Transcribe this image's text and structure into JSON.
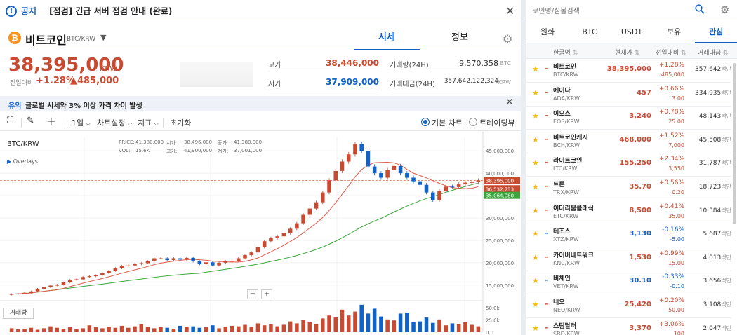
{
  "notice": {
    "tag": "공지",
    "title": "[점검] 긴급 서버 점검 안내 (완료)"
  },
  "coin": {
    "name": "비트코인",
    "pair": "BTC/KRW",
    "logo": "₿"
  },
  "tabs": [
    "시세",
    "정보"
  ],
  "price": {
    "value": "38,395,000",
    "unit": "KRW",
    "change_label": "전일대비",
    "change_pct": "+1.28%",
    "change_amt": "▲485,000"
  },
  "stats": {
    "high_label": "고가",
    "high": "38,446,000",
    "low_label": "저가",
    "low": "37,909,000",
    "volume_label": "거래량(24H)",
    "volume": "9,570.358",
    "volume_unit": "BTC",
    "amount_label": "거래대금(24H)",
    "amount": "357,642,122,324",
    "amount_unit": "KRW"
  },
  "warning": {
    "tag": "유의",
    "text": "글로벌 시세와 3% 이상 가격 차이 발생"
  },
  "toolbar": {
    "interval": "1일",
    "settings": "차트설정",
    "indicators": "지표",
    "reset": "초기화",
    "basic_chart": "기본 차트",
    "tradingview": "트레이딩뷰"
  },
  "chart": {
    "symbol": "BTC/KRW",
    "overlays": "Overlays",
    "price_label": "PRICE:",
    "price_val": "41,380,000",
    "open_label": "시가:",
    "open_val": "38,496,000",
    "close_label": "종가:",
    "close_val": "41,380,000",
    "vol_label": "VOL:",
    "vol_val": "15.6K",
    "high_label": "고가:",
    "high_val": "41,900,000",
    "low_label": "저가:",
    "low_val": "37,001,000",
    "y_ticks": [
      "45,000,000",
      "40,000,000",
      "35,000,000",
      "30,000,000",
      "25,000,000",
      "20,000,000",
      "15,000,000"
    ],
    "y_tick_values": [
      45000000,
      40000000,
      35000000,
      30000000,
      25000000,
      20000000,
      15000000
    ],
    "vol_ticks": [
      "50.0k",
      "25.0k",
      "0.0"
    ],
    "tags": [
      {
        "label": "38,395,000",
        "value": 38395000,
        "color": "#c84a31"
      },
      {
        "label": "36,532,733",
        "value": 36532733,
        "color": "#c84a31"
      },
      {
        "label": "35,064,080",
        "value": 35064080,
        "color": "#3aa53a"
      }
    ],
    "current_price": 38395000,
    "volume_button": "거래량",
    "zoom_minus": "−",
    "zoom_plus": "+"
  },
  "chart_data": {
    "type": "line",
    "title": "",
    "xlabel": "",
    "ylabel": "",
    "ylim": [
      12000000,
      48000000
    ],
    "series": [
      {
        "values": [
          13000000,
          13100000,
          13300000,
          13600000,
          14200000,
          14500000,
          14900000,
          15100000,
          15600000,
          16200000,
          16300000,
          16800000,
          17000000,
          17200000,
          17700000,
          18200000,
          18800000,
          19300000,
          19400000,
          19700000,
          19900000,
          20300000,
          21000000,
          21000000,
          20600000,
          21000000,
          20700000,
          21100000,
          20300000,
          19700000,
          20100000,
          19400000,
          20000000,
          20300000,
          20400000,
          21000000,
          21700000,
          22300000,
          23500000,
          24800000,
          25500000,
          25900000,
          26600000,
          27600000,
          28800000,
          30700000,
          32100000,
          33500000,
          35700000,
          38400000,
          40500000,
          42600000,
          44200000,
          46500000,
          45000000,
          41500000,
          40000000,
          39000000,
          40700000,
          41600000,
          40000000,
          39000000,
          38200000,
          37400000,
          35700000,
          34000000,
          36100000,
          37000000,
          36900000,
          37500000,
          37900000,
          38000000,
          38395000
        ]
      },
      {
        "name": "",
        "values": []
      },
      {
        "name": "",
        "values": []
      }
    ],
    "volume_values": [
      8,
      6,
      7,
      9,
      5,
      8,
      12,
      9,
      7,
      10,
      6,
      8,
      14,
      10,
      8,
      11,
      9,
      13,
      9,
      12,
      16,
      11,
      8,
      10,
      9,
      7,
      13,
      11,
      12,
      9,
      10,
      14,
      8,
      11,
      13,
      12,
      15,
      11,
      18,
      14,
      16,
      12,
      15,
      22,
      18,
      25,
      20,
      17,
      28,
      34,
      30,
      46,
      34,
      42,
      56,
      38,
      48,
      32,
      26,
      24,
      38,
      40,
      20,
      22,
      30,
      19,
      26,
      14,
      18,
      16,
      20,
      15,
      12
    ],
    "volume_ylim": [
      0,
      60000
    ]
  },
  "watch": {
    "search_placeholder": "코인명/심볼검색",
    "tabs": [
      "원화",
      "BTC",
      "USDT",
      "보유",
      "관심"
    ],
    "columns": [
      "한글명",
      "현재가",
      "전일대비",
      "거래대금"
    ],
    "rows": [
      {
        "name": "비트코인",
        "sym": "BTC/KRW",
        "price": "38,395,000",
        "pct": "+1.28%",
        "amt": "485,000",
        "vol": "357,642",
        "dir": "up"
      },
      {
        "name": "에이다",
        "sym": "ADA/KRW",
        "price": "457",
        "pct": "+0.66%",
        "amt": "3.00",
        "vol": "334,935",
        "dir": "up"
      },
      {
        "name": "이오스",
        "sym": "EOS/KRW",
        "price": "3,240",
        "pct": "+0.78%",
        "amt": "25.00",
        "vol": "48,143",
        "dir": "up"
      },
      {
        "name": "비트코인캐시",
        "sym": "BCH/KRW",
        "price": "468,000",
        "pct": "+1.52%",
        "amt": "7,000",
        "vol": "45,508",
        "dir": "up"
      },
      {
        "name": "라이트코인",
        "sym": "LTC/KRW",
        "price": "155,250",
        "pct": "+2.34%",
        "amt": "3,550",
        "vol": "31,787",
        "dir": "up"
      },
      {
        "name": "트론",
        "sym": "TRX/KRW",
        "price": "35.70",
        "pct": "+0.56%",
        "amt": "0.20",
        "vol": "18,723",
        "dir": "up"
      },
      {
        "name": "이더리움클래식",
        "sym": "ETC/KRW",
        "price": "8,500",
        "pct": "+0.41%",
        "amt": "35.00",
        "vol": "10,384",
        "dir": "up"
      },
      {
        "name": "테조스",
        "sym": "XTZ/KRW",
        "price": "3,130",
        "pct": "-0.16%",
        "amt": "-5.00",
        "vol": "5,687",
        "dir": "down"
      },
      {
        "name": "카이버네트워크",
        "sym": "KNC/KRW",
        "price": "1,530",
        "pct": "+0.99%",
        "amt": "15.00",
        "vol": "4,013",
        "dir": "up"
      },
      {
        "name": "비체인",
        "sym": "VET/KRW",
        "price": "30.10",
        "pct": "-0.33%",
        "amt": "-0.10",
        "vol": "3,656",
        "dir": "down"
      },
      {
        "name": "네오",
        "sym": "NEO/KRW",
        "price": "25,420",
        "pct": "+0.20%",
        "amt": "50.00",
        "vol": "3,108",
        "dir": "up"
      },
      {
        "name": "스팀달러",
        "sym": "SBD/KRW",
        "price": "3,370",
        "pct": "+3.06%",
        "amt": "100",
        "vol": "2,047",
        "dir": "up"
      }
    ],
    "vol_unit": "백만"
  },
  "colors": {
    "up": "#c84a31",
    "down": "#1261c4",
    "accent": "#1261c4",
    "ma_red": "#e05a4a",
    "ma_green": "#3aa53a"
  }
}
